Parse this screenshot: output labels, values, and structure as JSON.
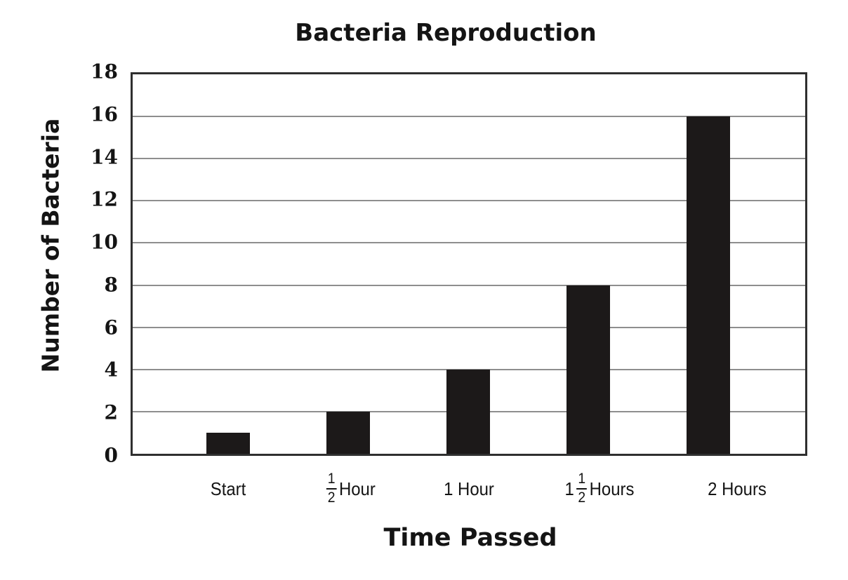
{
  "page": {
    "background": "#ffffff"
  },
  "chart_data": {
    "type": "bar",
    "title": "Bacteria Reproduction",
    "xlabel": "Time Passed",
    "ylabel": "Number of Bacteria",
    "categories": [
      "Start",
      "1/2 Hour",
      "1 Hour",
      "1 1/2 Hours",
      "2 Hours"
    ],
    "category_label_parts": [
      [
        {
          "t": "Start"
        }
      ],
      [
        {
          "f": [
            "1",
            "2"
          ]
        },
        {
          "t": " Hour"
        }
      ],
      [
        {
          "t": "1 Hour"
        }
      ],
      [
        {
          "t": "1 "
        },
        {
          "f": [
            "1",
            "2"
          ]
        },
        {
          "t": " Hours"
        }
      ],
      [
        {
          "t": "2 Hours"
        }
      ]
    ],
    "values": [
      1,
      2,
      4,
      8,
      16
    ],
    "ylim": [
      0,
      18
    ],
    "yticks": [
      0,
      2,
      4,
      6,
      8,
      10,
      12,
      14,
      16,
      18
    ],
    "grid": true,
    "legend_position": "none",
    "colors": {
      "bar": "#1c1919",
      "grid": "#8e8e8e",
      "axis_border": "#2f2f2f",
      "text": "#141414",
      "background": "#ffffff"
    }
  }
}
